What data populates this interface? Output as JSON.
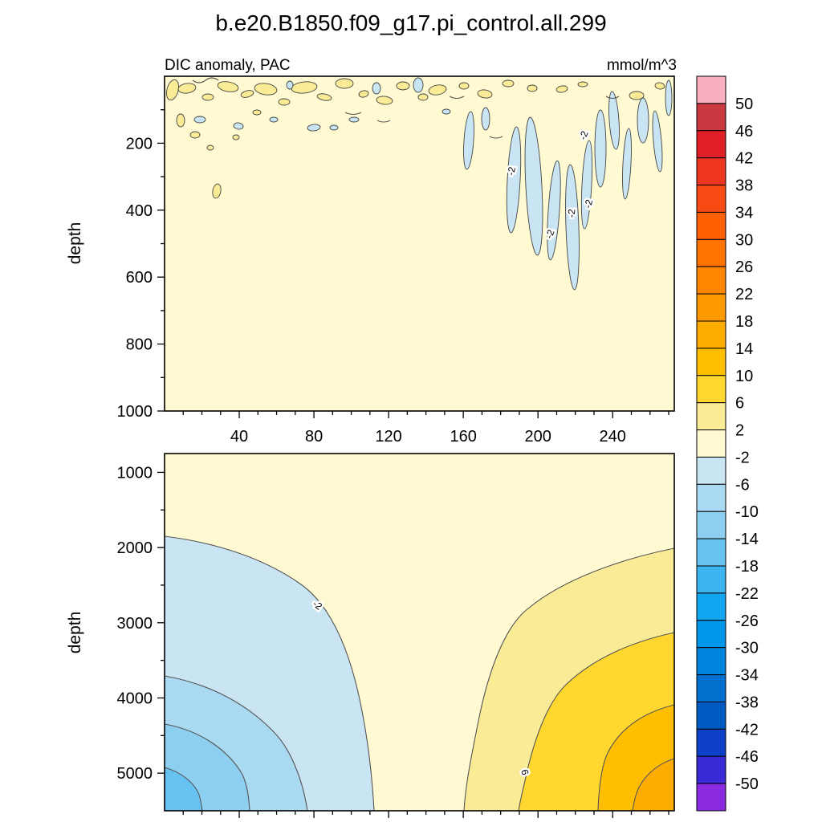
{
  "title": "b.e20.B1850.f09_g17.pi_control.all.299",
  "subtitle": "DIC anomaly, PAC",
  "units": "mmol/m^3",
  "chart_data": {
    "type": "contour",
    "field_label": "DIC anomaly, PAC",
    "region": "PAC",
    "units": "mmol/m^3",
    "colorbar_orientation": "vertical-right",
    "levels": [
      50,
      46,
      42,
      38,
      34,
      30,
      26,
      22,
      18,
      14,
      10,
      6,
      2,
      -2,
      -6,
      -10,
      -14,
      -18,
      -22,
      -26,
      -30,
      -34,
      -38,
      -42,
      -46,
      -50
    ],
    "colors": [
      "#FBAEC0",
      "#C93A40",
      "#E01F26",
      "#EE3520",
      "#F84B14",
      "#FF6004",
      "#FF7300",
      "#FF8600",
      "#FF9900",
      "#FFAC00",
      "#FFBF00",
      "#FFD72E",
      "#FAEC96",
      "#FFFAD2",
      "#C9E5F4",
      "#AADAF1",
      "#8CCFF0",
      "#66C2F0",
      "#3CB4F0",
      "#12A6F0",
      "#0096EA",
      "#0083DC",
      "#006FCE",
      "#005AC3",
      "#0D41C8",
      "#3A2AD8",
      "#8A2BE2"
    ],
    "contour_labels": {
      "negative": "-2",
      "positive": "6"
    },
    "panels": [
      {
        "name": "upper",
        "ylabel": "depth",
        "ylim": [
          0,
          1000
        ],
        "yticks": [
          200,
          400,
          600,
          800,
          1000
        ],
        "xlim": [
          0,
          273
        ],
        "xticks": [
          40,
          80,
          120,
          160,
          200,
          240
        ],
        "x_tick_labels_visible": true,
        "description": "Background within -2..2 mmol/m^3 (cream). Scattered +2..+6 and -6..-2 patches in the upper ~150 m across all x. Narrow -6..-2 plumes between x=180 and x=235 reach ~550 m depth, several labeled -2. Isolated +2..+6 patch near x=28 at ~350 m."
      },
      {
        "name": "lower",
        "ylabel": "depth",
        "ylim": [
          750,
          5500
        ],
        "yticks": [
          1000,
          2000,
          3000,
          4000,
          5000
        ],
        "xlim": [
          0,
          273
        ],
        "xticks": [
          40,
          80,
          120,
          160,
          200,
          240
        ],
        "x_tick_labels_visible": false,
        "description": "Negative anomaly on the left: -2 contour from ~1800 m at the left edge dipping to the bottom near x=112; nested -6, -10, -14 bands deepening toward the bottom-left corner. Positive anomaly on the right: +2 contour from ~1950 m at the right edge dipping to the bottom near x=160; nested +6 (labeled 6), +10, +14 bands toward the bottom-right corner. Near-zero (-2..2) tongue down the center."
      }
    ]
  }
}
